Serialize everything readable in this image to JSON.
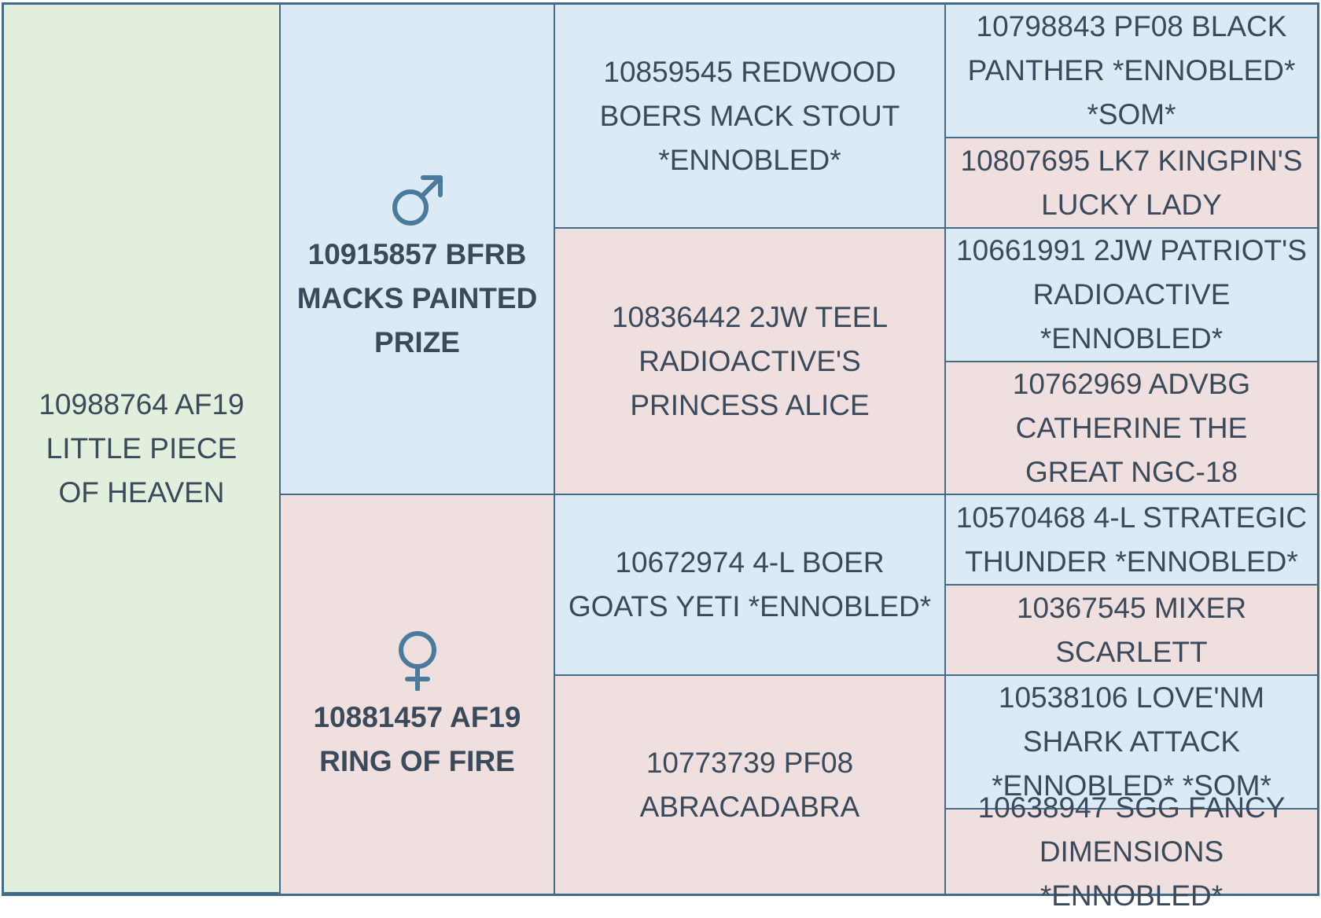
{
  "subject": {
    "name": "10988764 AF19 LITTLE PIECE OF HEAVEN"
  },
  "sire": {
    "name": "10915857 BFRB MACKS PAINTED PRIZE",
    "icon": "male-symbol-icon",
    "sire": {
      "name": "10859545 REDWOOD BOERS MACK STOUT *ENNOBLED*",
      "sire": {
        "name": "10798843 PF08 BLACK PANTHER *ENNOBLED* *SOM*"
      },
      "dam": {
        "name": "10807695 LK7 KINGPIN'S LUCKY LADY"
      }
    },
    "dam": {
      "name": "10836442 2JW TEEL RADIOACTIVE'S PRINCESS ALICE",
      "sire": {
        "name": "10661991 2JW PATRIOT'S RADIOACTIVE *ENNOBLED*"
      },
      "dam": {
        "name": "10762969 ADVBG CATHERINE THE GREAT NGC-18"
      }
    }
  },
  "dam": {
    "name": "10881457 AF19 RING OF FIRE",
    "icon": "female-symbol-icon",
    "sire": {
      "name": "10672974 4-L BOER GOATS YETI *ENNOBLED*",
      "sire": {
        "name": "10570468 4-L STRATEGIC THUNDER *ENNOBLED*"
      },
      "dam": {
        "name": "10367545 MIXER SCARLETT"
      }
    },
    "dam": {
      "name": "10773739 PF08 ABRACADABRA",
      "sire": {
        "name": "10538106 LOVE'NM SHARK ATTACK *ENNOBLED* *SOM*"
      },
      "dam": {
        "name": "10638947 SGG FANCY DIMENSIONS *ENNOBLED*"
      }
    }
  },
  "colors": {
    "subject_bg": "#e2efdc",
    "male_bg": "#dceaf5",
    "female_bg": "#f0dfdf",
    "border": "#436a86",
    "symbol": "#4a7a9c",
    "text": "#3a4a5a"
  }
}
